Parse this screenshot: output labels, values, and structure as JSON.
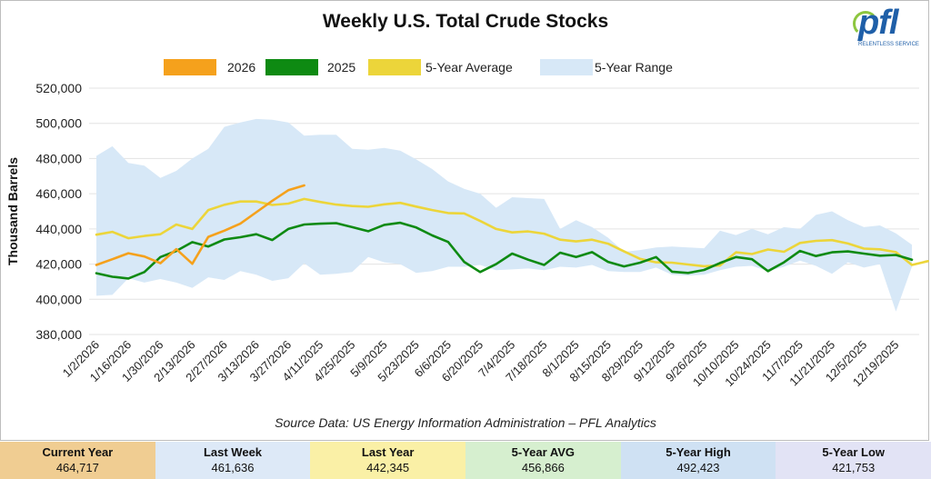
{
  "chart_data": {
    "type": "line",
    "title": "Weekly U.S. Total Crude Stocks",
    "ylabel": "Thousand Barrels",
    "xlabel": "",
    "ylim": [
      380000,
      520000
    ],
    "yticks": [
      "380,000",
      "400,000",
      "420,000",
      "440,000",
      "460,000",
      "480,000",
      "500,000",
      "520,000"
    ],
    "x_tick_labels": [
      "1/2/2026",
      "1/16/2026",
      "1/30/2026",
      "2/13/2026",
      "2/27/2026",
      "3/13/2026",
      "3/27/2026",
      "4/11/2025",
      "4/25/2025",
      "5/9/2025",
      "5/23/2025",
      "6/6/2025",
      "6/20/2025",
      "7/4/2025",
      "7/18/2025",
      "8/1/2025",
      "8/15/2025",
      "8/29/2025",
      "9/12/2025",
      "9/26/2025",
      "10/10/2025",
      "10/24/2025",
      "11/7/2025",
      "11/21/2025",
      "12/5/2025",
      "12/19/2025"
    ],
    "grid": true,
    "legend_position": "top-center",
    "series": [
      {
        "name": "2026",
        "color": "#f5a11c",
        "values": [
          419500,
          422800,
          426200,
          424300,
          420500,
          428500,
          420200,
          435500,
          439000,
          443000,
          449500,
          456000,
          462000,
          464717
        ]
      },
      {
        "name": "2025",
        "color": "#0e8a12",
        "values": [
          414800,
          412800,
          411800,
          415500,
          424000,
          427500,
          432500,
          430000,
          434000,
          435300,
          437000,
          433700,
          440000,
          442500,
          443000,
          443300,
          441000,
          438700,
          442300,
          443500,
          440800,
          436300,
          432600,
          421300,
          415500,
          420000,
          426000,
          422500,
          419500,
          426500,
          424000,
          426800,
          421300,
          418700,
          420800,
          424000,
          415700,
          415000,
          416700,
          420600,
          424000,
          422800,
          416000,
          421000,
          427500,
          424600,
          426700,
          427200,
          426000,
          424800,
          425200,
          422500
        ]
      },
      {
        "name": "5-Year Average",
        "color": "#ecd53a",
        "values": [
          436700,
          438300,
          434700,
          436000,
          437000,
          442500,
          440000,
          450700,
          453700,
          455600,
          455600,
          453600,
          454400,
          457000,
          455300,
          453800,
          453000,
          452600,
          454000,
          454800,
          452700,
          450700,
          449000,
          448800,
          444500,
          440000,
          438000,
          438600,
          437300,
          433900,
          432900,
          433900,
          431600,
          427200,
          423000,
          421000,
          420800,
          419800,
          418800,
          419200,
          426700,
          425700,
          428300,
          427000,
          432000,
          433200,
          433600,
          431700,
          428800,
          428400,
          426800,
          419500,
          421700
        ]
      },
      {
        "name": "5-Year Range",
        "color": "#d7e8f7",
        "high": [
          481500,
          487000,
          477500,
          476000,
          469000,
          473000,
          480000,
          485500,
          498000,
          500500,
          502500,
          502000,
          500500,
          493000,
          493500,
          493500,
          485500,
          485000,
          486000,
          484500,
          479500,
          474000,
          467000,
          462800,
          460000,
          452000,
          458000,
          457500,
          457000,
          440000,
          445000,
          441000,
          435000,
          427000,
          428000,
          429500,
          430000,
          429500,
          429000,
          439000,
          436500,
          440000,
          437000,
          441000,
          440000,
          448000,
          450000,
          445000,
          441000,
          442000,
          437500,
          431000
        ],
        "low": [
          402000,
          402500,
          412000,
          409500,
          411500,
          409500,
          406500,
          412500,
          411000,
          416000,
          414000,
          410500,
          412000,
          420500,
          414000,
          414500,
          415500,
          424000,
          421000,
          420000,
          415000,
          416000,
          418500,
          418500,
          419500,
          416500,
          417000,
          417500,
          416500,
          418500,
          418000,
          419500,
          416000,
          415500,
          415500,
          418000,
          414000,
          413500,
          414000,
          416500,
          418500,
          419000,
          416000,
          418500,
          422000,
          419000,
          414500,
          421000,
          418000,
          420000,
          393000,
          418500
        ]
      }
    ]
  },
  "source_note": "Source Data: US Energy Information Administration – PFL Analytics",
  "logo": {
    "text": "pfl",
    "tagline": "RELENTLESS SERVICE"
  },
  "stats": [
    {
      "label": "Current Year",
      "value": "464,717",
      "bg": "#f0cd92"
    },
    {
      "label": "Last Week",
      "value": "461,636",
      "bg": "#dde9f7"
    },
    {
      "label": "Last Year",
      "value": "442,345",
      "bg": "#faf0a6"
    },
    {
      "label": "5-Year AVG",
      "value": "456,866",
      "bg": "#d6efcf"
    },
    {
      "label": "5-Year High",
      "value": "492,423",
      "bg": "#cfe1f3"
    },
    {
      "label": "5-Year Low",
      "value": "421,753",
      "bg": "#e2e3f5"
    }
  ]
}
